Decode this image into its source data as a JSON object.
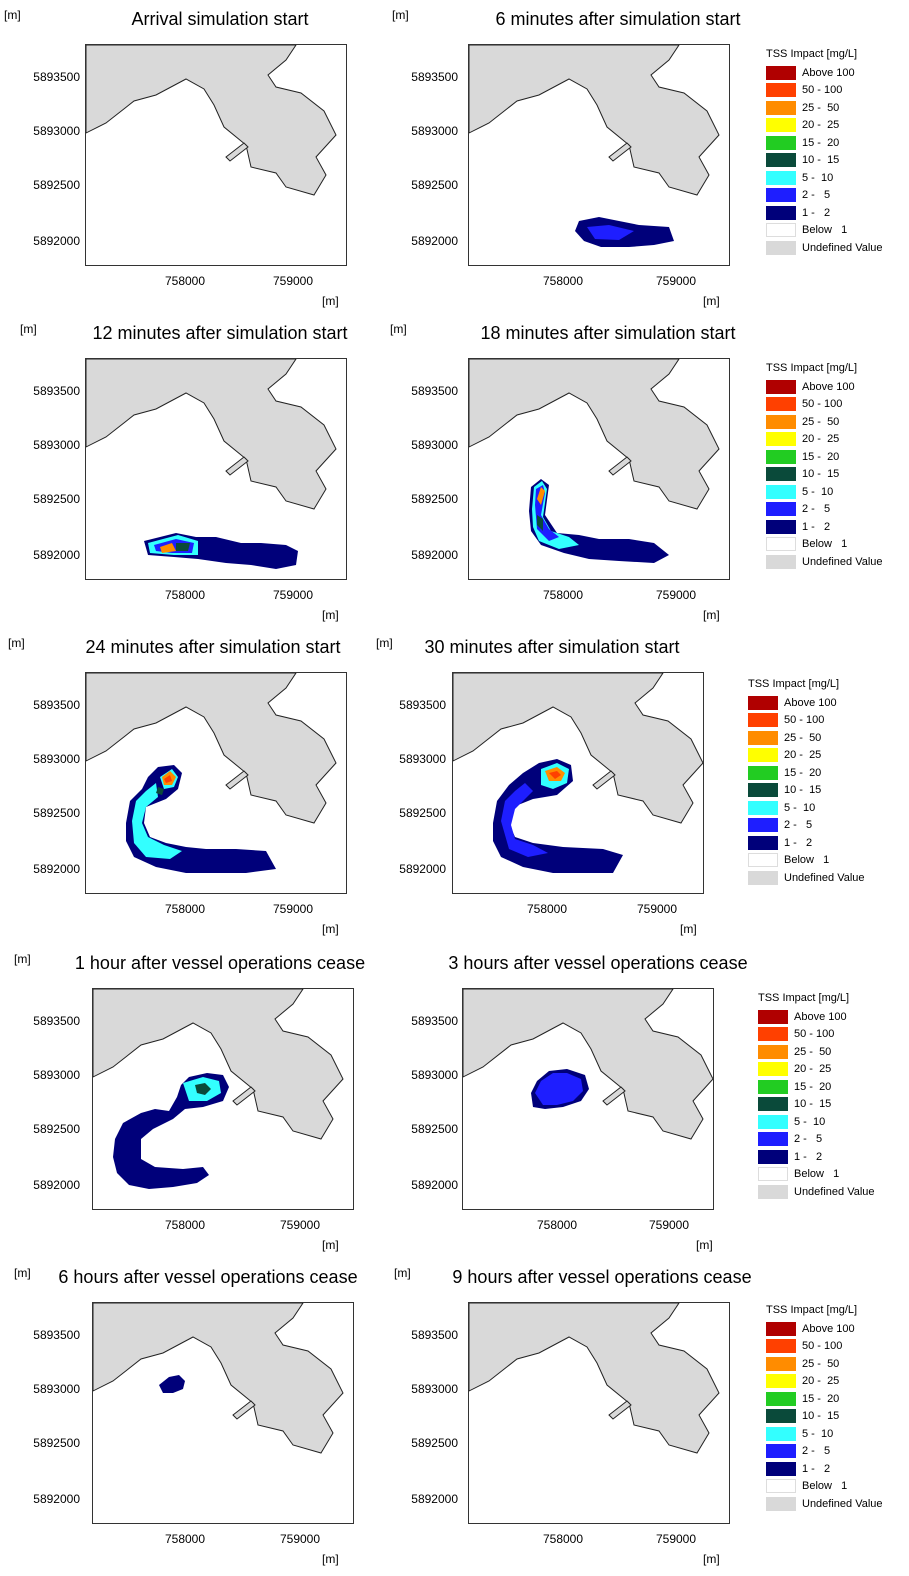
{
  "units": {
    "y": "[m]",
    "x": "[m]"
  },
  "axis": {
    "y_ticks": [
      "5893500",
      "5893000",
      "5892500",
      "5892000"
    ],
    "x_ticks": [
      "758000",
      "759000"
    ]
  },
  "legend": {
    "title": "TSS Impact [mg/L]",
    "items": [
      {
        "label": "Above 100",
        "color": "#b00000"
      },
      {
        "label": "50 - 100",
        "color": "#ff4000"
      },
      {
        "label": "25 -  50",
        "color": "#ff8c00"
      },
      {
        "label": "20 -  25",
        "color": "#ffff00"
      },
      {
        "label": "15 -  20",
        "color": "#22cc22"
      },
      {
        "label": "10 -  15",
        "color": "#0a4a3a"
      },
      {
        "label": "5 -  10",
        "color": "#33ffff"
      },
      {
        "label": "2 -   5",
        "color": "#1e1eff"
      },
      {
        "label": "1 -   2",
        "color": "#00007a"
      },
      {
        "label": "Below   1",
        "color": "#ffffff"
      },
      {
        "label": "Undefined Value",
        "color": "#d9d9d9"
      }
    ]
  },
  "panels": [
    {
      "title": "Arrival simulation start",
      "plume": "none"
    },
    {
      "title": "6 minutes after simulation start",
      "plume": "t6"
    },
    {
      "title": "12 minutes after simulation start",
      "plume": "t12"
    },
    {
      "title": "18 minutes after simulation start",
      "plume": "t18"
    },
    {
      "title": "24 minutes after simulation start",
      "plume": "t24"
    },
    {
      "title": "30 minutes after simulation start",
      "plume": "t30"
    },
    {
      "title": "1 hour after vessel operations cease",
      "plume": "h1"
    },
    {
      "title": "3 hours after vessel operations cease",
      "plume": "h3"
    },
    {
      "title": "6 hours after vessel operations cease",
      "plume": "h6"
    },
    {
      "title": "9 hours after vessel operations cease",
      "plume": "none"
    }
  ],
  "colors": {
    "land": "#d9d9d9",
    "c1": "#00007a",
    "c2": "#1e1eff",
    "c5": "#33ffff",
    "c10": "#0a4a3a",
    "c15": "#22cc22",
    "c20": "#ffff00",
    "c25": "#ff8c00",
    "c50": "#ff4000",
    "c100": "#b00000"
  }
}
